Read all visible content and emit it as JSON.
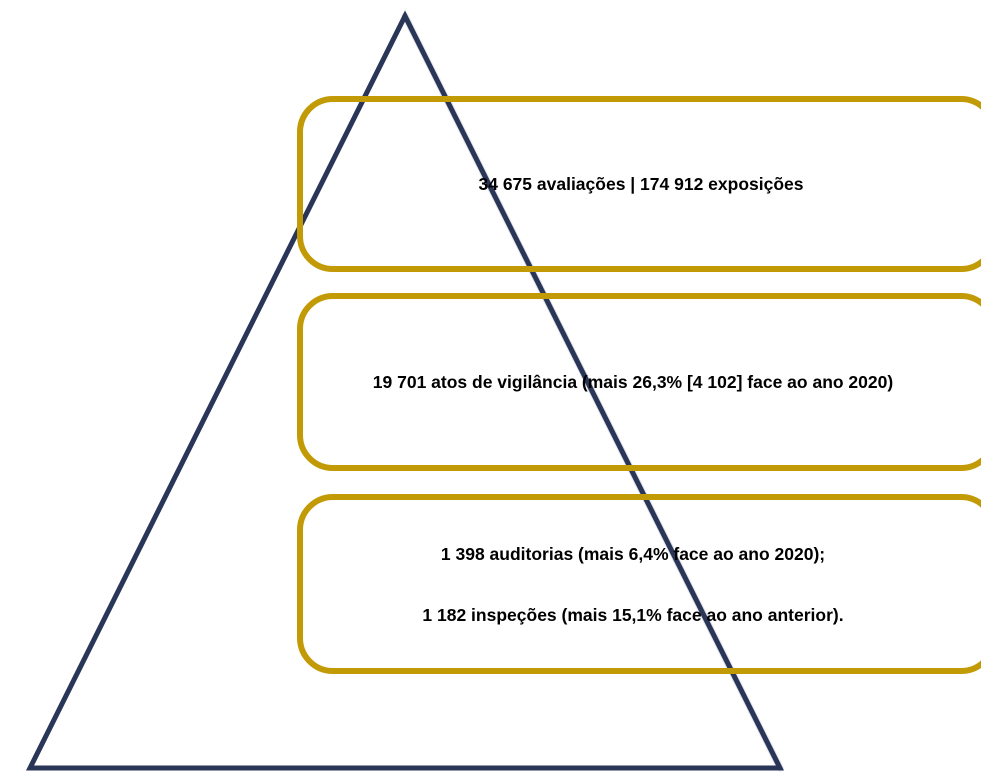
{
  "colors": {
    "triangle_outline": "#2a3658",
    "triangle_inner_line": "#e3e3ea",
    "box_border": "#c29a06",
    "text": "#000000"
  },
  "tiers": {
    "top": {
      "text": "34 675 avaliações | 174 912 exposições"
    },
    "middle": {
      "text": "19 701  atos de vigilância (mais 26,3% [4 102] face ao ano 2020)"
    },
    "bottom": {
      "line1": "1 398 auditorias (mais 6,4% face ao ano 2020);",
      "line2": "1 182 inspeções (mais 15,1% face ao ano anterior)."
    }
  }
}
